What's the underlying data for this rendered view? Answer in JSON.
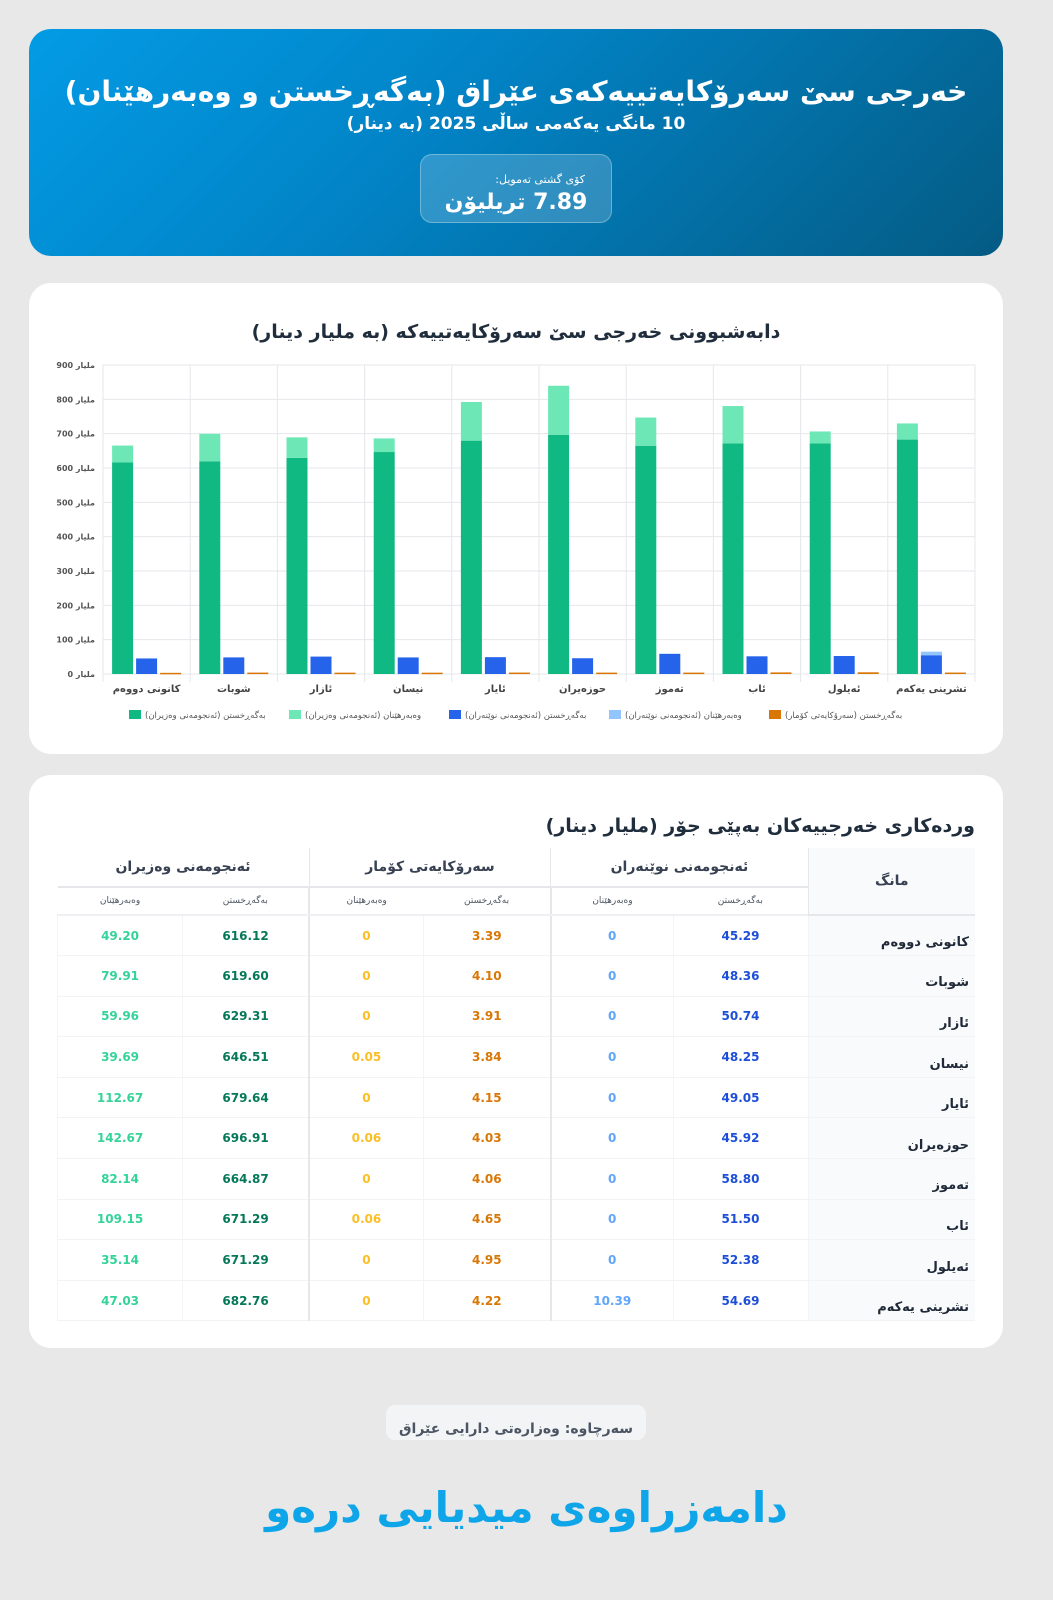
{
  "header": {
    "title": "خەرجی سێ سەرۆکایەتییەکەی عێراق (بەگەڕخستن و وەبەرهێنان)",
    "subtitle": "10 مانگی یەکەمی ساڵی 2025 (بە دینار)",
    "total_label": "کۆی گشتی تەمویل:",
    "total_value": "7.89 تریلیۆن"
  },
  "chart_data": {
    "type": "bar",
    "title": "دابەشبوونی خەرجی سێ سەرۆکایەتییەکە (بە ملیار دینار)",
    "stacked": true,
    "ylim": [
      0,
      900
    ],
    "yticks": [
      0,
      100,
      200,
      300,
      400,
      500,
      600,
      700,
      800,
      900
    ],
    "ytick_suffix": "ملیار",
    "grid": true,
    "legend_position": "bottom",
    "categories": [
      "کانونی دووەم",
      "شوبات",
      "ئازار",
      "نیسان",
      "ئایار",
      "حوزەیران",
      "تەموز",
      "ئاب",
      "ئەیلول",
      "تشرینی یەکەم"
    ],
    "series": [
      {
        "name": "بەگەڕخستن (ئەنجومەنی وەزیران)",
        "stack": "ministers",
        "color": "#10b981",
        "values": [
          616.12,
          619.6,
          629.31,
          646.51,
          679.64,
          696.91,
          664.87,
          671.29,
          671.29,
          682.76
        ]
      },
      {
        "name": "وەبەرهێنان (ئەنجومەنی وەزیران)",
        "stack": "ministers",
        "color": "#6ee7b7",
        "values": [
          49.2,
          79.91,
          59.96,
          39.69,
          112.67,
          142.67,
          82.14,
          109.15,
          35.14,
          47.03
        ]
      },
      {
        "name": "بەگەڕخستن (ئەنجومەنی نوێنەران)",
        "stack": "parliament",
        "color": "#2563eb",
        "values": [
          45.29,
          48.36,
          50.74,
          48.25,
          49.05,
          45.92,
          58.8,
          51.5,
          52.38,
          54.69
        ]
      },
      {
        "name": "وەبەرهێنان (ئەنجومەنی نوێنەران)",
        "stack": "parliament",
        "color": "#93c5fd",
        "values": [
          0,
          0,
          0,
          0,
          0,
          0,
          0,
          0,
          0,
          10.39
        ]
      },
      {
        "name": "بەگەڕخستن (سەرۆکایەتی کۆمار)",
        "stack": "presidency",
        "color": "#d97706",
        "values": [
          3.39,
          4.1,
          3.91,
          3.84,
          4.15,
          4.03,
          4.06,
          4.65,
          4.95,
          4.22
        ]
      }
    ]
  },
  "table": {
    "title": "وردەکاری خەرجییەکان بەپێی جۆر (ملیار دینار)",
    "month_header": "مانگ",
    "groups": [
      "ئەنجومەنی نوێنەران",
      "سەرۆکایەتی کۆمار",
      "ئەنجومەنی وەزیران"
    ],
    "sub_operating": "بەگەڕخستن",
    "sub_investment": "وەبەرهێنان",
    "colors": [
      "#1d4ed8",
      "#60a5fa",
      "#d97706",
      "#fbbf24",
      "#047857",
      "#34d399"
    ],
    "rows": [
      {
        "month": "کانونی دووەم",
        "values": [
          "45.29",
          "0",
          "3.39",
          "0",
          "616.12",
          "49.20"
        ]
      },
      {
        "month": "شوبات",
        "values": [
          "48.36",
          "0",
          "4.10",
          "0",
          "619.60",
          "79.91"
        ]
      },
      {
        "month": "ئازار",
        "values": [
          "50.74",
          "0",
          "3.91",
          "0",
          "629.31",
          "59.96"
        ]
      },
      {
        "month": "نیسان",
        "values": [
          "48.25",
          "0",
          "3.84",
          "0.05",
          "646.51",
          "39.69"
        ]
      },
      {
        "month": "ئایار",
        "values": [
          "49.05",
          "0",
          "4.15",
          "0",
          "679.64",
          "112.67"
        ]
      },
      {
        "month": "حوزەیران",
        "values": [
          "45.92",
          "0",
          "4.03",
          "0.06",
          "696.91",
          "142.67"
        ]
      },
      {
        "month": "تەموز",
        "values": [
          "58.80",
          "0",
          "4.06",
          "0",
          "664.87",
          "82.14"
        ]
      },
      {
        "month": "ئاب",
        "values": [
          "51.50",
          "0",
          "4.65",
          "0.06",
          "671.29",
          "109.15"
        ]
      },
      {
        "month": "ئەیلول",
        "values": [
          "52.38",
          "0",
          "4.95",
          "0",
          "671.29",
          "35.14"
        ]
      },
      {
        "month": "تشرینی یەکەم",
        "values": [
          "54.69",
          "10.39",
          "4.22",
          "0",
          "682.76",
          "47.03"
        ]
      }
    ]
  },
  "footer": {
    "source": "سەرچاوە: وەزارەتی دارایی عێراق",
    "brand": "دامەزراوەی میدیایی درەو"
  }
}
